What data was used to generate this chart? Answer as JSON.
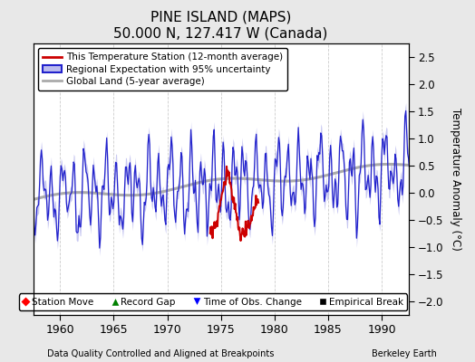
{
  "title": "PINE ISLAND (MAPS)",
  "subtitle": "50.000 N, 127.417 W (Canada)",
  "xlabel_bottom": "Data Quality Controlled and Aligned at Breakpoints",
  "xlabel_right": "Berkeley Earth",
  "ylabel_right": "Temperature Anomaly (°C)",
  "xlim": [
    1957.5,
    1992.5
  ],
  "ylim": [
    -2.25,
    2.75
  ],
  "yticks": [
    -2,
    -1.5,
    -1,
    -0.5,
    0,
    0.5,
    1,
    1.5,
    2,
    2.5
  ],
  "xticks": [
    1960,
    1965,
    1970,
    1975,
    1980,
    1985,
    1990
  ],
  "bg_color": "#e8e8e8",
  "plot_bg_color": "#ffffff",
  "regional_color": "#2222cc",
  "regional_shade_color": "#bbbbee",
  "station_color": "#cc0000",
  "global_color": "#aaaaaa",
  "grid_color": "#cccccc"
}
